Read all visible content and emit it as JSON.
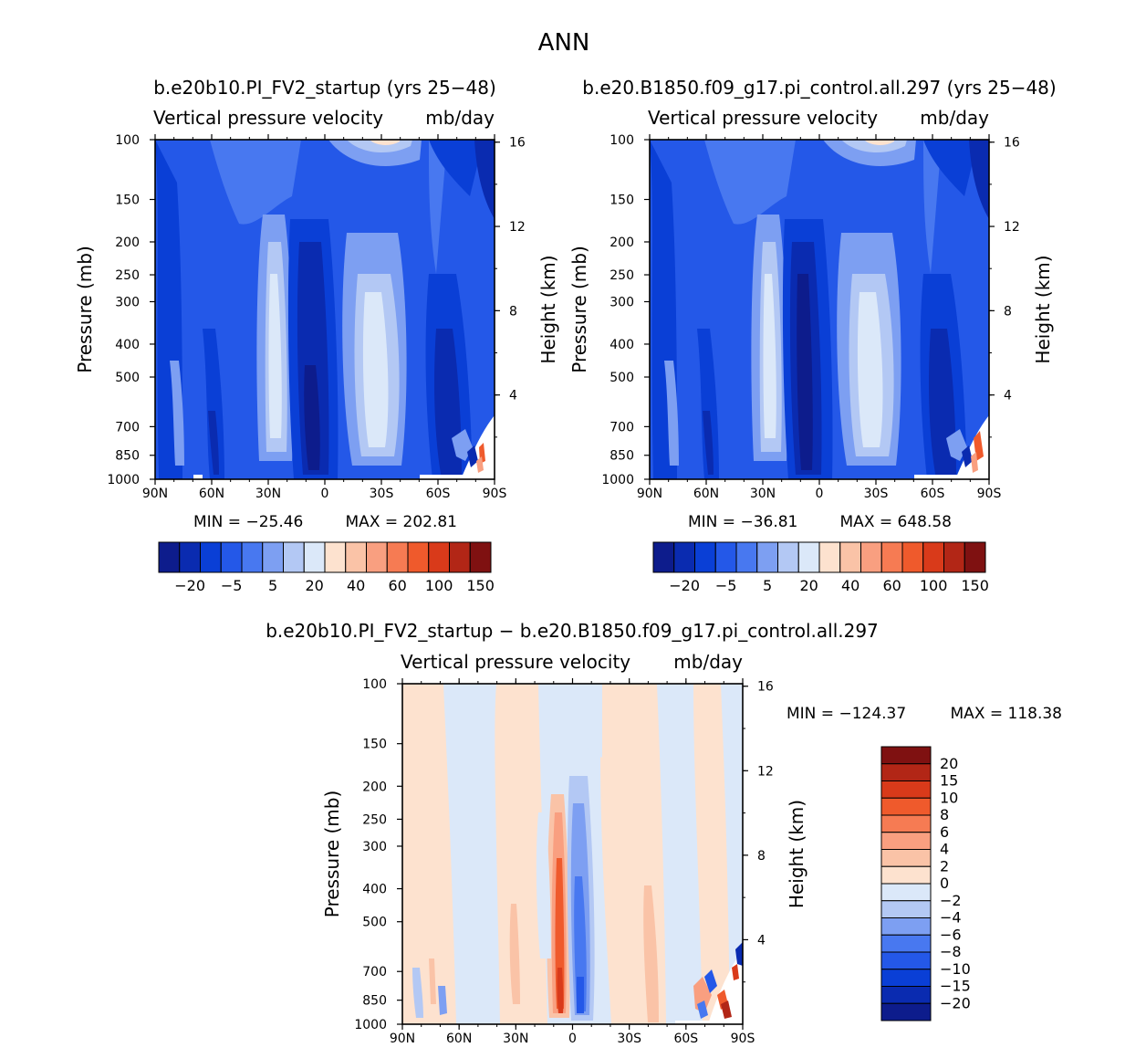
{
  "chart_data": {
    "type": "heatmap",
    "title": "ANN",
    "panels": [
      {
        "id": "test",
        "case_label": "b.e20b10.PI_FV2_startup (yrs 25−48)",
        "title": "Vertical pressure velocity",
        "units": "mb/day",
        "xlabel": "",
        "ylabel": "Pressure (mb)",
        "ylabel_right": "Height (km)",
        "xticks": [
          "90N",
          "60N",
          "30N",
          "0",
          "30S",
          "60S",
          "90S"
        ],
        "yticks": [
          100,
          150,
          200,
          250,
          300,
          400,
          500,
          700,
          850,
          1000
        ],
        "yticks_right": [
          16,
          12,
          8,
          4
        ],
        "min_label": "MIN = −25.46",
        "max_label": "MAX = 202.81",
        "colorbar_labels": [
          "−20",
          "−5",
          "5",
          "20",
          "40",
          "60",
          "100",
          "150"
        ]
      },
      {
        "id": "control",
        "case_label": "b.e20.B1850.f09_g17.pi_control.all.297 (yrs 25−48)",
        "title": "Vertical pressure velocity",
        "units": "mb/day",
        "xlabel": "",
        "ylabel": "Pressure (mb)",
        "ylabel_right": "Height (km)",
        "xticks": [
          "90N",
          "60N",
          "30N",
          "0",
          "30S",
          "60S",
          "90S"
        ],
        "yticks": [
          100,
          150,
          200,
          250,
          300,
          400,
          500,
          700,
          850,
          1000
        ],
        "yticks_right": [
          16,
          12,
          8,
          4
        ],
        "min_label": "MIN = −36.81",
        "max_label": "MAX = 648.58",
        "colorbar_labels": [
          "−20",
          "−5",
          "5",
          "20",
          "40",
          "60",
          "100",
          "150"
        ]
      },
      {
        "id": "diff",
        "case_label": "b.e20b10.PI_FV2_startup − b.e20.B1850.f09_g17.pi_control.all.297",
        "title": "Vertical pressure velocity",
        "units": "mb/day",
        "xlabel": "",
        "ylabel": "Pressure (mb)",
        "ylabel_right": "Height (km)",
        "xticks": [
          "90N",
          "60N",
          "30N",
          "0",
          "30S",
          "60S",
          "90S"
        ],
        "yticks": [
          100,
          150,
          200,
          250,
          300,
          400,
          500,
          700,
          850,
          1000
        ],
        "yticks_right": [
          16,
          12,
          8,
          4
        ],
        "min_label": "MIN = −124.37",
        "max_label": "MAX = 118.38",
        "colorbar_labels": [
          "20",
          "15",
          "10",
          "8",
          "6",
          "4",
          "2",
          "0",
          "−2",
          "−4",
          "−6",
          "−8",
          "−10",
          "−15",
          "−20"
        ]
      }
    ],
    "colors": {
      "full_scale": [
        "#0d1c8c",
        "#0a2bb0",
        "#0a3fd6",
        "#2458e8",
        "#4878f0",
        "#7d9ff2",
        "#b3c8f4",
        "#dbe8f9",
        "#fde2cf",
        "#fac3a7",
        "#f99f80",
        "#f67b53",
        "#ef5a2c",
        "#d93a1a",
        "#b22616",
        "#7f1111"
      ],
      "diff_scale": [
        "#7f1111",
        "#b22616",
        "#d93a1a",
        "#ef5a2c",
        "#f67b53",
        "#f99f80",
        "#fac3a7",
        "#fde2cf",
        "#dbe8f9",
        "#b3c8f4",
        "#7d9ff2",
        "#4878f0",
        "#2458e8",
        "#0a3fd6",
        "#0a2bb0",
        "#0d1c8c"
      ]
    }
  }
}
